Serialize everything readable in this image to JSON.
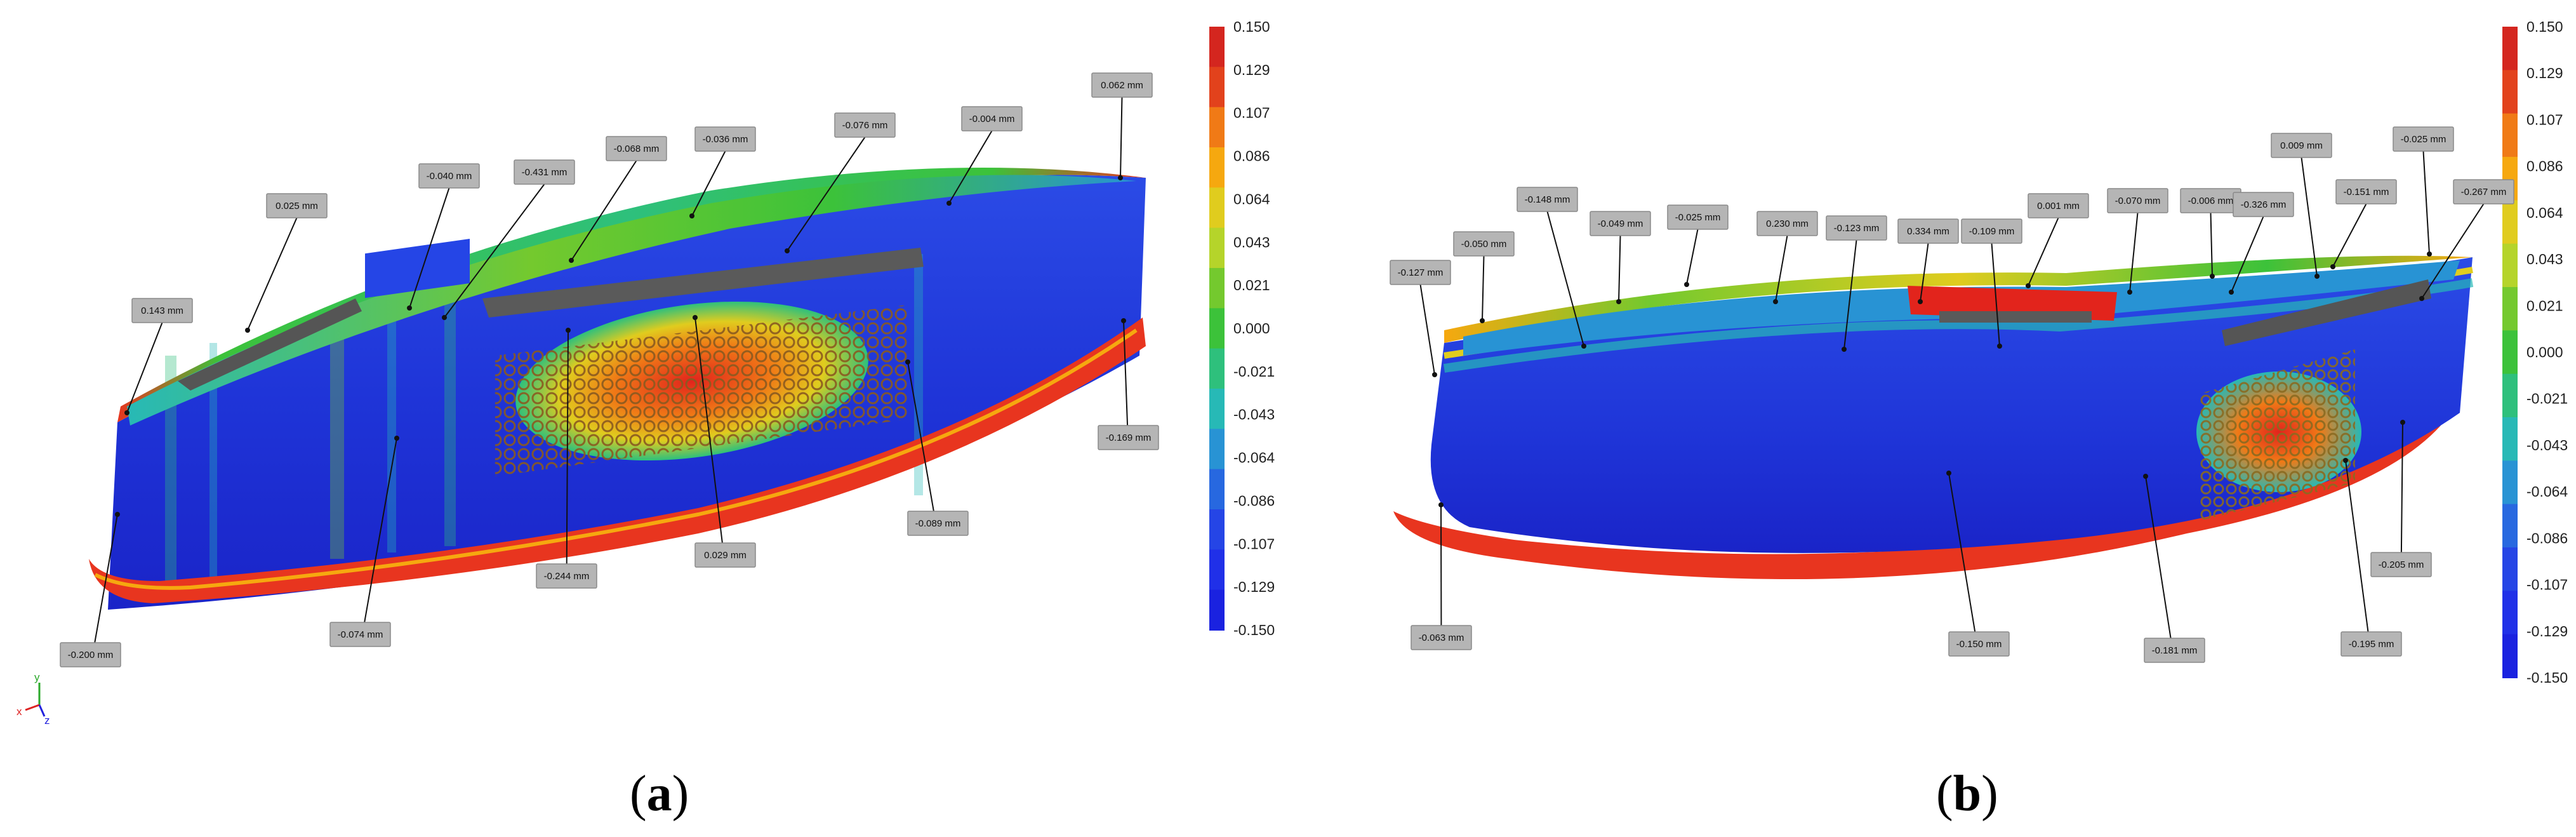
{
  "colorbar": {
    "ticks": [
      "0.150",
      "0.129",
      "0.107",
      "0.086",
      "0.064",
      "0.043",
      "0.021",
      "0.000",
      "-0.021",
      "-0.043",
      "-0.064",
      "-0.086",
      "-0.107",
      "-0.129",
      "-0.150"
    ],
    "colors": [
      "#d4261f",
      "#e2421c",
      "#f07a16",
      "#f6a80f",
      "#e0cc1e",
      "#b5d42a",
      "#74c92e",
      "#3cc23a",
      "#2ec07c",
      "#27b9b6",
      "#2893d4",
      "#2768e0",
      "#2545e6",
      "#2030e8",
      "#1a22e0"
    ]
  },
  "panel_a": {
    "caption": "a",
    "annotations": [
      {
        "text": "0.025  mm"
      },
      {
        "text": "-0.040  mm"
      },
      {
        "text": "-0.431  mm"
      },
      {
        "text": "-0.068  mm"
      },
      {
        "text": "-0.036  mm"
      },
      {
        "text": "-0.076  mm"
      },
      {
        "text": "-0.004  mm"
      },
      {
        "text": "0.062  mm"
      },
      {
        "text": "0.143  mm"
      },
      {
        "text": "-0.169  mm"
      },
      {
        "text": "-0.089  mm"
      },
      {
        "text": "0.029  mm"
      },
      {
        "text": "-0.244  mm"
      },
      {
        "text": "-0.074  mm"
      },
      {
        "text": "-0.200  mm"
      }
    ],
    "axes": {
      "x": "x",
      "y": "y",
      "z": "z"
    }
  },
  "panel_b": {
    "caption": "b",
    "annotations": [
      {
        "text": "-0.127  mm"
      },
      {
        "text": "-0.050  mm"
      },
      {
        "text": "-0.148  mm"
      },
      {
        "text": "-0.049  mm"
      },
      {
        "text": "-0.025  mm"
      },
      {
        "text": "0.230  mm"
      },
      {
        "text": "-0.123  mm"
      },
      {
        "text": "0.334  mm"
      },
      {
        "text": "-0.109  mm"
      },
      {
        "text": "0.001  mm"
      },
      {
        "text": "-0.070  mm"
      },
      {
        "text": "-0.006  mm"
      },
      {
        "text": "-0.326  mm"
      },
      {
        "text": "0.009  mm"
      },
      {
        "text": "-0.151  mm"
      },
      {
        "text": "-0.025  mm"
      },
      {
        "text": "-0.267  mm"
      },
      {
        "text": "-0.205  mm"
      },
      {
        "text": "-0.063  mm"
      },
      {
        "text": "-0.150  mm"
      },
      {
        "text": "-0.181  mm"
      },
      {
        "text": "-0.195  mm"
      }
    ]
  }
}
